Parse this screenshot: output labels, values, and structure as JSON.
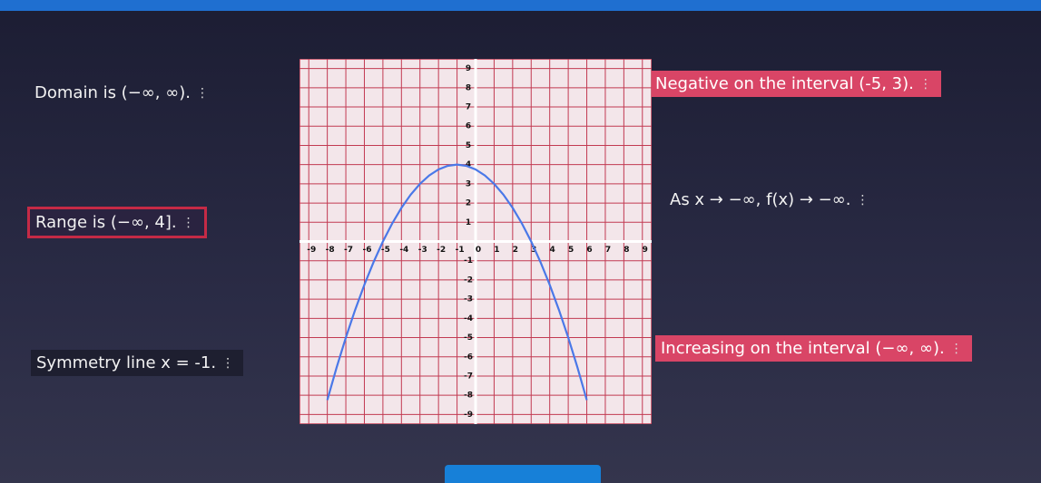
{
  "statements": [
    "Domain is (−∞, ∞).",
    "Range is (−∞, 4].",
    "Symmetry line x = -1.",
    "Negative on the interval (-5, 3).",
    "As x → −∞, f(x) → −∞.",
    "Increasing on the interval (−∞, ∞)."
  ],
  "graph": {
    "xlim": [
      -9.5,
      9.5
    ],
    "ylim": [
      -9.5,
      9.5
    ],
    "xticks": [
      -9,
      -8,
      -7,
      -6,
      -5,
      -4,
      -3,
      -2,
      -1,
      0,
      1,
      2,
      3,
      4,
      5,
      6,
      7,
      8,
      9
    ],
    "yticks": [
      -9,
      -8,
      -7,
      -6,
      -5,
      -4,
      -3,
      -2,
      -1,
      1,
      2,
      3,
      4,
      5,
      6,
      7,
      8,
      9
    ],
    "curve": {
      "x": [
        -8,
        -7.5,
        -7,
        -6.5,
        -6,
        -5.5,
        -5,
        -4.5,
        -4,
        -3.5,
        -3,
        -2.5,
        -2,
        -1.5,
        -1,
        -0.5,
        0,
        0.5,
        1,
        1.5,
        2,
        2.5,
        3,
        3.5,
        4,
        4.5,
        5,
        5.5,
        6
      ],
      "y": [
        -8.25,
        -6.5625,
        -5,
        -3.5625,
        -2.25,
        -1.0625,
        0,
        0.9375,
        1.75,
        2.4375,
        3,
        3.4375,
        3.75,
        3.9375,
        4,
        3.9375,
        3.75,
        3.4375,
        3,
        2.4375,
        1.75,
        0.9375,
        0,
        -1.0625,
        -2.25,
        -3.5625,
        -5,
        -6.5625,
        -8.25
      ]
    }
  }
}
